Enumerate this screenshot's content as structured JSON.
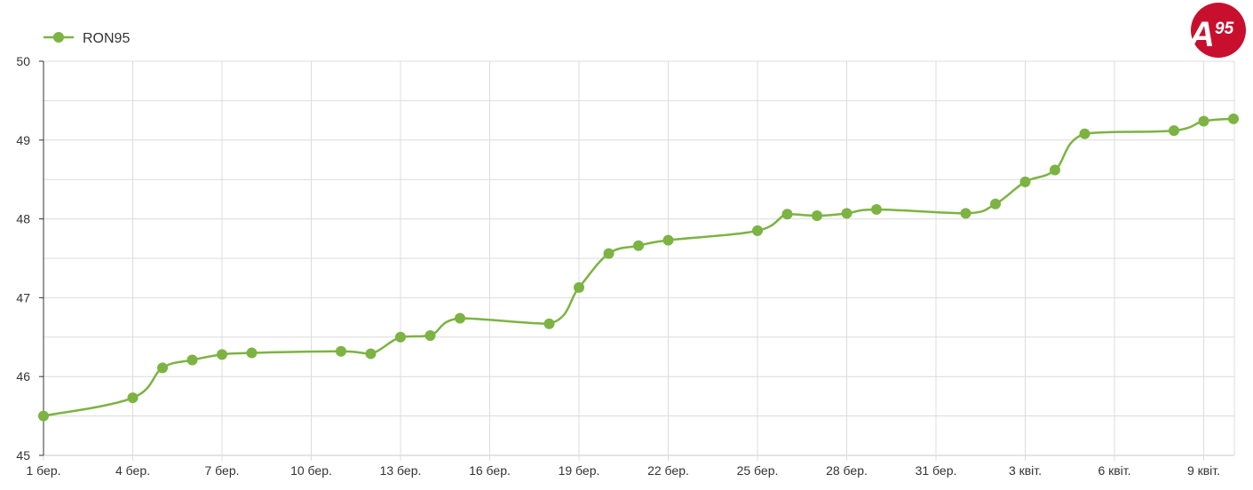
{
  "chart_data": {
    "type": "line",
    "series": [
      {
        "name": "RON95",
        "color": "#7cb342",
        "points": [
          {
            "day": 0,
            "value": 45.5
          },
          {
            "day": 3,
            "value": 45.73
          },
          {
            "day": 4,
            "value": 46.11
          },
          {
            "day": 5,
            "value": 46.21
          },
          {
            "day": 6,
            "value": 46.28
          },
          {
            "day": 7,
            "value": 46.3
          },
          {
            "day": 10,
            "value": 46.32
          },
          {
            "day": 11,
            "value": 46.29
          },
          {
            "day": 12,
            "value": 46.5
          },
          {
            "day": 13,
            "value": 46.52
          },
          {
            "day": 14,
            "value": 46.74
          },
          {
            "day": 17,
            "value": 46.67
          },
          {
            "day": 18,
            "value": 47.13
          },
          {
            "day": 19,
            "value": 47.56
          },
          {
            "day": 20,
            "value": 47.66
          },
          {
            "day": 21,
            "value": 47.73
          },
          {
            "day": 24,
            "value": 47.85
          },
          {
            "day": 25,
            "value": 48.06
          },
          {
            "day": 26,
            "value": 48.04
          },
          {
            "day": 27,
            "value": 48.07
          },
          {
            "day": 28,
            "value": 48.12
          },
          {
            "day": 31,
            "value": 48.07
          },
          {
            "day": 32,
            "value": 48.19
          },
          {
            "day": 33,
            "value": 48.47
          },
          {
            "day": 34,
            "value": 48.62
          },
          {
            "day": 35,
            "value": 49.08
          },
          {
            "day": 38,
            "value": 49.12
          },
          {
            "day": 39,
            "value": 49.24
          },
          {
            "day": 40,
            "value": 49.27
          }
        ]
      }
    ],
    "x_ticks": [
      {
        "day": 0,
        "label": "1 бер."
      },
      {
        "day": 3,
        "label": "4 бер."
      },
      {
        "day": 6,
        "label": "7 бер."
      },
      {
        "day": 9,
        "label": "10 бер."
      },
      {
        "day": 12,
        "label": "13 бер."
      },
      {
        "day": 15,
        "label": "16 бер."
      },
      {
        "day": 18,
        "label": "19 бер."
      },
      {
        "day": 21,
        "label": "22 бер."
      },
      {
        "day": 24,
        "label": "25 бер."
      },
      {
        "day": 27,
        "label": "28 бер."
      },
      {
        "day": 30,
        "label": "31 бер."
      },
      {
        "day": 33,
        "label": "3 квіт."
      },
      {
        "day": 36,
        "label": "6 квіт."
      },
      {
        "day": 39,
        "label": "9 квіт."
      }
    ],
    "y_ticks": [
      45,
      46,
      47,
      48,
      49,
      50
    ],
    "ylim": [
      45,
      50
    ],
    "xlim": [
      0,
      40.3
    ],
    "grid": true,
    "legend_position": "top-left"
  },
  "logo": {
    "text": "A",
    "superscript": "95",
    "color": "#c8102e"
  }
}
